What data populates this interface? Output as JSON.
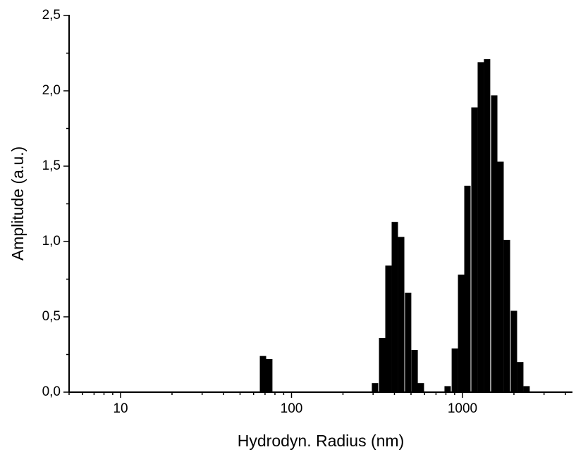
{
  "chart_data": {
    "type": "bar",
    "x_scale": "log",
    "x_label": "Hydrodyn. Radius (nm)",
    "y_label": "Amplitude (a.u.)",
    "x": [
      68.1,
      74.1,
      308,
      339,
      369,
      402,
      438,
      481,
      525,
      571,
      819,
      902,
      982,
      1069,
      1175,
      1280,
      1393,
      1534,
      1670,
      1820,
      2000,
      2178,
      2371
    ],
    "values": [
      0.24,
      0.22,
      0.06,
      0.36,
      0.84,
      1.13,
      1.03,
      0.66,
      0.28,
      0.06,
      0.04,
      0.29,
      0.78,
      1.37,
      1.89,
      2.19,
      2.21,
      1.97,
      1.53,
      1.01,
      0.54,
      0.2,
      0.04
    ],
    "color": "#000000",
    "xlim": [
      5,
      4400
    ],
    "xticks": [
      10,
      100,
      1000
    ],
    "ylim": [
      0,
      2.5
    ],
    "yticks": [
      {
        "value": 0,
        "label": "0,0"
      },
      {
        "value": 0.5,
        "label": "0,5"
      },
      {
        "value": 1,
        "label": "1,0"
      },
      {
        "value": 1.5,
        "label": "1,5"
      },
      {
        "value": 2,
        "label": "2,0"
      },
      {
        "value": 2.5,
        "label": "2,5"
      }
    ]
  }
}
